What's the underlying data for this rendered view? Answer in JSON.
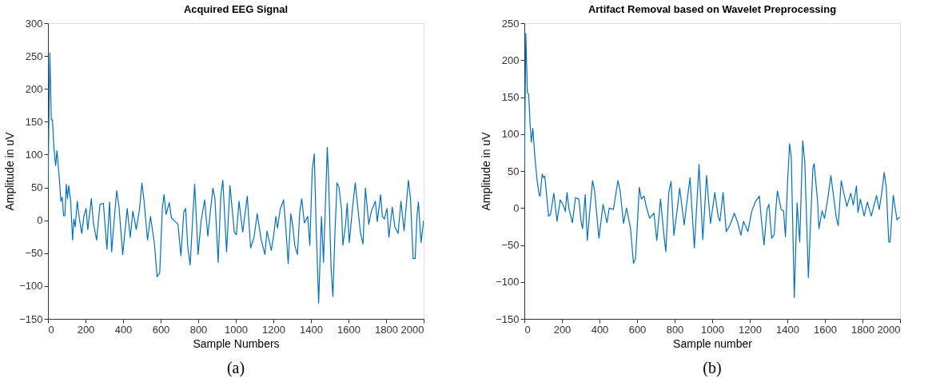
{
  "chart_data": [
    {
      "type": "line",
      "title": "Acquired EEG Signal",
      "xlabel": "Sample Numbers",
      "ylabel": "Amplitude in uV",
      "annotations": [
        "(a)"
      ],
      "xlim": [
        0,
        2000
      ],
      "ylim": [
        -150,
        300
      ],
      "xticks": [
        0,
        200,
        400,
        600,
        800,
        1000,
        1200,
        1400,
        1600,
        1800,
        2000
      ],
      "yticks": [
        -150,
        -100,
        -50,
        0,
        50,
        100,
        150,
        200,
        250,
        300
      ],
      "grid": false,
      "series": [
        {
          "color": "#0072bd",
          "x": [
            0,
            10,
            18,
            24,
            32,
            41,
            48,
            59,
            69,
            76,
            83,
            90,
            98,
            104,
            111,
            121,
            131,
            138,
            145,
            156,
            164,
            180,
            191,
            203,
            212,
            231,
            242,
            259,
            277,
            295,
            314,
            328,
            339,
            353,
            366,
            378,
            398,
            422,
            438,
            452,
            470,
            488,
            500,
            511,
            530,
            546,
            567,
            581,
            595,
            609,
            618,
            629,
            646,
            657,
            671,
            692,
            708,
            723,
            733,
            744,
            757,
            768,
            781,
            799,
            816,
            834,
            851,
            878,
            889,
            906,
            920,
            931,
            951,
            969,
            992,
            1003,
            1017,
            1037,
            1061,
            1079,
            1097,
            1114,
            1134,
            1155,
            1166,
            1189,
            1203,
            1213,
            1222,
            1236,
            1254,
            1266,
            1279,
            1293,
            1304,
            1314,
            1328,
            1341,
            1351,
            1365,
            1383,
            1394,
            1407,
            1418,
            1427,
            1441,
            1456,
            1467,
            1487,
            1494,
            1507,
            1517,
            1528,
            1539,
            1549,
            1563,
            1570,
            1584,
            1593,
            1604,
            1622,
            1636,
            1650,
            1664,
            1677,
            1690,
            1708,
            1722,
            1743,
            1753,
            1771,
            1780,
            1791,
            1805,
            1815,
            1833,
            1847,
            1864,
            1879,
            1896,
            1909,
            1919,
            1930,
            1944,
            1955,
            1965,
            1972,
            1986,
            2000
          ],
          "values": [
            47,
            255,
            153,
            153,
            109,
            83,
            106,
            69,
            29,
            35,
            7,
            7,
            55,
            33,
            53,
            29,
            -30,
            2,
            -10,
            29,
            9,
            -20,
            6,
            18,
            -14,
            33,
            -4,
            -30,
            24,
            26,
            -44,
            28,
            -48,
            2,
            45,
            21,
            -52,
            18,
            -26,
            14,
            -14,
            18,
            57,
            31,
            -30,
            6,
            -36,
            -86,
            -80,
            18,
            39,
            9,
            27,
            4,
            0,
            -6,
            -54,
            12,
            18,
            -40,
            -68,
            -10,
            55,
            -52,
            0,
            31,
            -24,
            49,
            33,
            -64,
            37,
            61,
            -48,
            53,
            -18,
            -22,
            29,
            -18,
            37,
            -42,
            -26,
            10,
            -28,
            -52,
            -16,
            -46,
            -20,
            6,
            -12,
            16,
            31,
            -10,
            -66,
            10,
            -10,
            -38,
            -52,
            14,
            33,
            -4,
            6,
            -38,
            77,
            101,
            -2,
            -126,
            6,
            -64,
            111,
            65,
            -72,
            -116,
            -18,
            57,
            51,
            16,
            -38,
            -8,
            26,
            -34,
            21,
            57,
            18,
            -20,
            -36,
            49,
            -6,
            14,
            29,
            -2,
            39,
            6,
            2,
            18,
            -26,
            20,
            -10,
            -20,
            29,
            -16,
            28,
            61,
            33,
            -58,
            -58,
            8,
            28,
            -34,
            0
          ]
        }
      ]
    },
    {
      "type": "line",
      "title": "Artifact Removal based on Wavelet Preprocessing",
      "xlabel": "Sample number",
      "ylabel": "Amplitude in uV",
      "annotations": [
        "(b)"
      ],
      "xlim": [
        0,
        2000
      ],
      "ylim": [
        -150,
        250
      ],
      "xticks": [
        0,
        200,
        400,
        600,
        800,
        1000,
        1200,
        1400,
        1600,
        1800,
        2000
      ],
      "yticks": [
        -150,
        -100,
        -50,
        0,
        50,
        100,
        150,
        200,
        250
      ],
      "grid": false,
      "series": [
        {
          "color": "#0072bd",
          "x": [
            0,
            8,
            16,
            23,
            30,
            37,
            45,
            57,
            68,
            79,
            84,
            95,
            102,
            109,
            129,
            139,
            157,
            174,
            191,
            207,
            218,
            227,
            238,
            256,
            272,
            290,
            302,
            310,
            324,
            335,
            347,
            363,
            374,
            397,
            419,
            440,
            452,
            474,
            498,
            510,
            528,
            544,
            565,
            581,
            592,
            612,
            623,
            637,
            651,
            667,
            690,
            705,
            725,
            742,
            753,
            769,
            781,
            796,
            814,
            827,
            851,
            864,
            882,
            905,
            930,
            950,
            970,
            991,
            1014,
            1032,
            1041,
            1058,
            1075,
            1095,
            1118,
            1136,
            1153,
            1167,
            1190,
            1211,
            1231,
            1251,
            1262,
            1276,
            1292,
            1302,
            1317,
            1330,
            1340,
            1347,
            1367,
            1380,
            1390,
            1401,
            1412,
            1421,
            1437,
            1452,
            1466,
            1482,
            1493,
            1512,
            1523,
            1536,
            1543,
            1561,
            1568,
            1585,
            1598,
            1616,
            1632,
            1646,
            1660,
            1671,
            1687,
            1700,
            1717,
            1738,
            1751,
            1768,
            1776,
            1789,
            1809,
            1826,
            1847,
            1875,
            1889,
            1902,
            1916,
            1927,
            1940,
            1947,
            1964,
            1984,
            1998
          ],
          "values": [
            49,
            236,
            156,
            154,
            116,
            89,
            108,
            66,
            37,
            18,
            16,
            46,
            41,
            43,
            -11,
            -9,
            20,
            -18,
            11,
            4,
            -5,
            21,
            -2,
            -20,
            14,
            12,
            -18,
            -28,
            18,
            -44,
            -8,
            37,
            23,
            -41,
            5,
            -20,
            0,
            -2,
            37,
            23,
            -21,
            0,
            -27,
            -75,
            -68,
            28,
            12,
            16,
            0,
            -14,
            -7,
            -44,
            12,
            -34,
            -59,
            21,
            36,
            -37,
            -2,
            27,
            -23,
            5,
            41,
            -54,
            59,
            -43,
            44,
            -21,
            21,
            -12,
            -18,
            21,
            -32,
            -23,
            -7,
            -20,
            -37,
            -18,
            -32,
            -4,
            9,
            16,
            -16,
            -50,
            -2,
            5,
            -41,
            -36,
            2,
            23,
            -2,
            -4,
            -39,
            34,
            87,
            69,
            -121,
            7,
            -46,
            91,
            62,
            -94,
            -23,
            53,
            60,
            9,
            -28,
            -4,
            -14,
            14,
            44,
            16,
            -12,
            -24,
            37,
            21,
            2,
            20,
            4,
            30,
            -6,
            12,
            -11,
            8,
            -11,
            17,
            -2,
            19,
            48,
            27,
            -46,
            -46,
            17,
            -16,
            -12
          ]
        }
      ]
    }
  ]
}
